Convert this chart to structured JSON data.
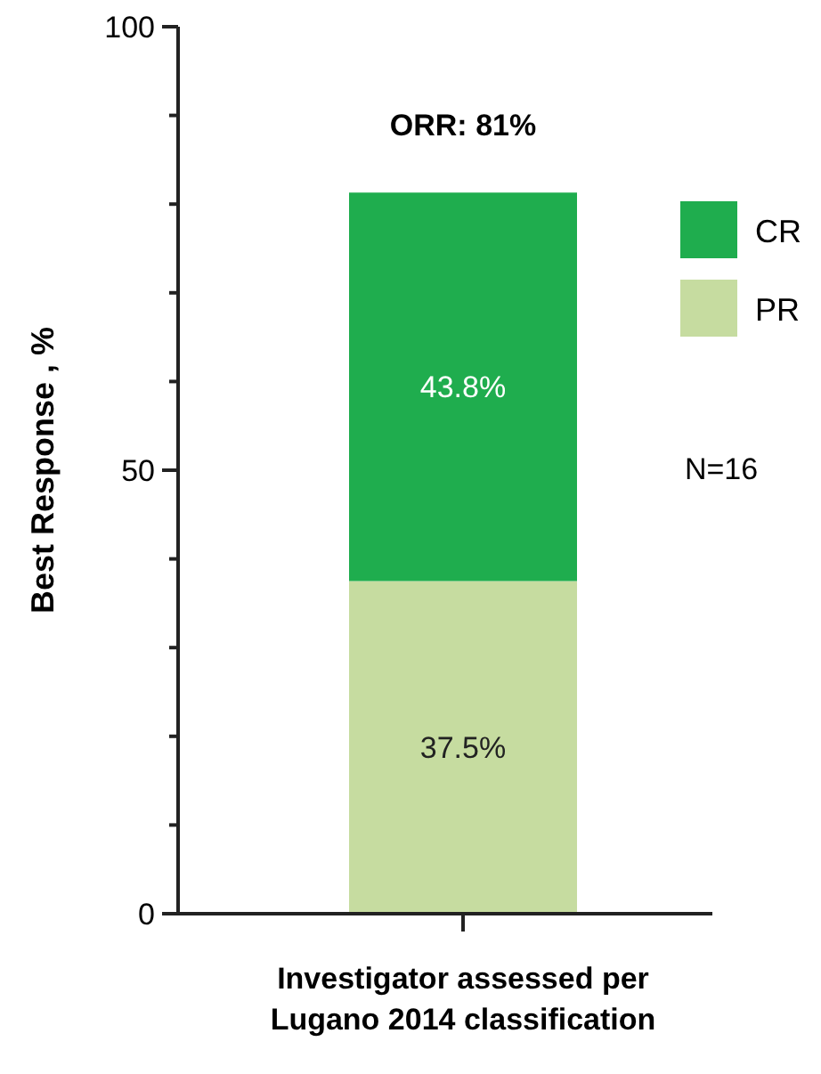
{
  "chart_data": {
    "type": "bar",
    "stacked": true,
    "categories": [
      null
    ],
    "xlabel": "Investigator assessed per\nLugano 2014 classification",
    "ylabel": "Best Response , %",
    "ylim": [
      0,
      100
    ],
    "yticks": [
      0,
      {
        "value": 10,
        "label": null
      },
      {
        "value": 20,
        "label": null
      },
      {
        "value": 30,
        "label": null
      },
      {
        "value": 40,
        "label": null
      },
      50,
      {
        "value": 60,
        "label": null
      },
      {
        "value": 70,
        "label": null
      },
      {
        "value": 80,
        "label": null
      },
      {
        "value": 90,
        "label": null
      },
      100
    ],
    "series": [
      {
        "name": "PR",
        "color": "#c6dca0",
        "values": [
          37.5
        ],
        "value_labels": [
          "37.5%"
        ]
      },
      {
        "name": "CR",
        "color": "#1fad4e",
        "values": [
          43.8
        ],
        "value_labels": [
          "43.8%"
        ]
      }
    ],
    "annotations": [
      "ORR: 81%",
      "N=16"
    ],
    "legend": "right"
  }
}
